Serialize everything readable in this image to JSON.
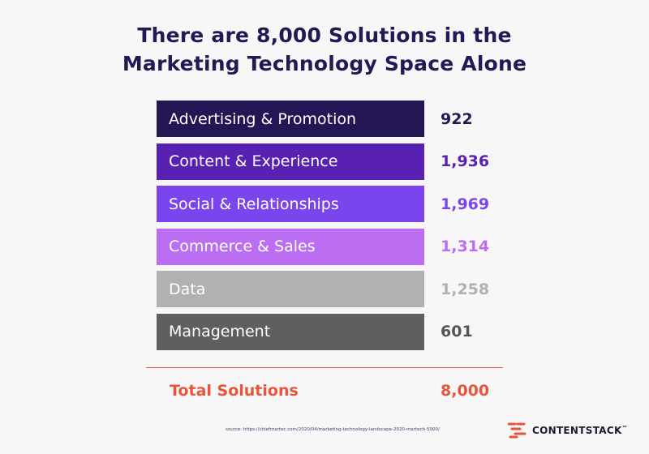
{
  "title_lines": [
    "There are 8,000 Solutions in the",
    "Marketing Technology Space Alone"
  ],
  "chart_data": {
    "type": "table",
    "title": "There are 8,000 Solutions in the Marketing Technology Space Alone",
    "categories": [
      "Advertising & Promotion",
      "Content & Experience",
      "Social & Relationships",
      "Commerce & Sales",
      "Data",
      "Management"
    ],
    "values": [
      922,
      1936,
      1969,
      1314,
      1258,
      601
    ],
    "display_values": [
      "922",
      "1,936",
      "1,969",
      "1,314",
      "1,258",
      "601"
    ],
    "bar_colors": [
      "#241654",
      "#5821b3",
      "#7b45ee",
      "#bb6ef2",
      "#b1b1b1",
      "#5f5f5f"
    ],
    "value_colors": [
      "#221a55",
      "#5821b3",
      "#7b45ee",
      "#bb6ef2",
      "#b1b1b1",
      "#555555"
    ],
    "total": {
      "label": "Total Solutions",
      "value": 8000,
      "display_value": "8,000"
    }
  },
  "accent_color": "#e8553c",
  "source_text": "source: https://chiefmartec.com/2020/04/marketing-technology-landscape-2020-martech-5000/",
  "brand": {
    "name": "CONTENTSTACK",
    "trademark": "™",
    "icon": "contentstack-logo-icon"
  }
}
